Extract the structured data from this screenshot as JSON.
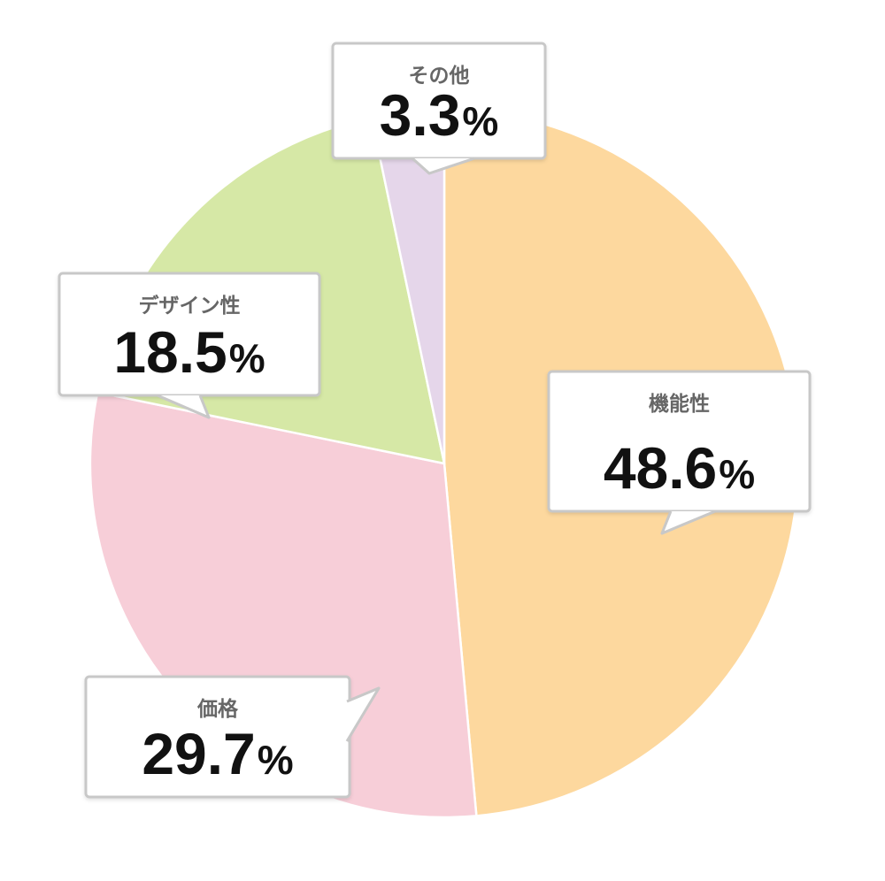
{
  "chart_data": {
    "type": "pie",
    "title": "",
    "start_angle_deg": 0,
    "direction": "clockwise",
    "legend": "none",
    "slices": [
      {
        "label": "機能性",
        "value": 48.6,
        "unit": "%",
        "color": "#FDD89E"
      },
      {
        "label": "価格",
        "value": 29.7,
        "unit": "%",
        "color": "#F7CED8"
      },
      {
        "label": "デザイン性",
        "value": 18.5,
        "unit": "%",
        "color": "#D6E8A6"
      },
      {
        "label": "その他",
        "value": 3.3,
        "unit": "%",
        "color": "#E5D6EA"
      }
    ]
  }
}
